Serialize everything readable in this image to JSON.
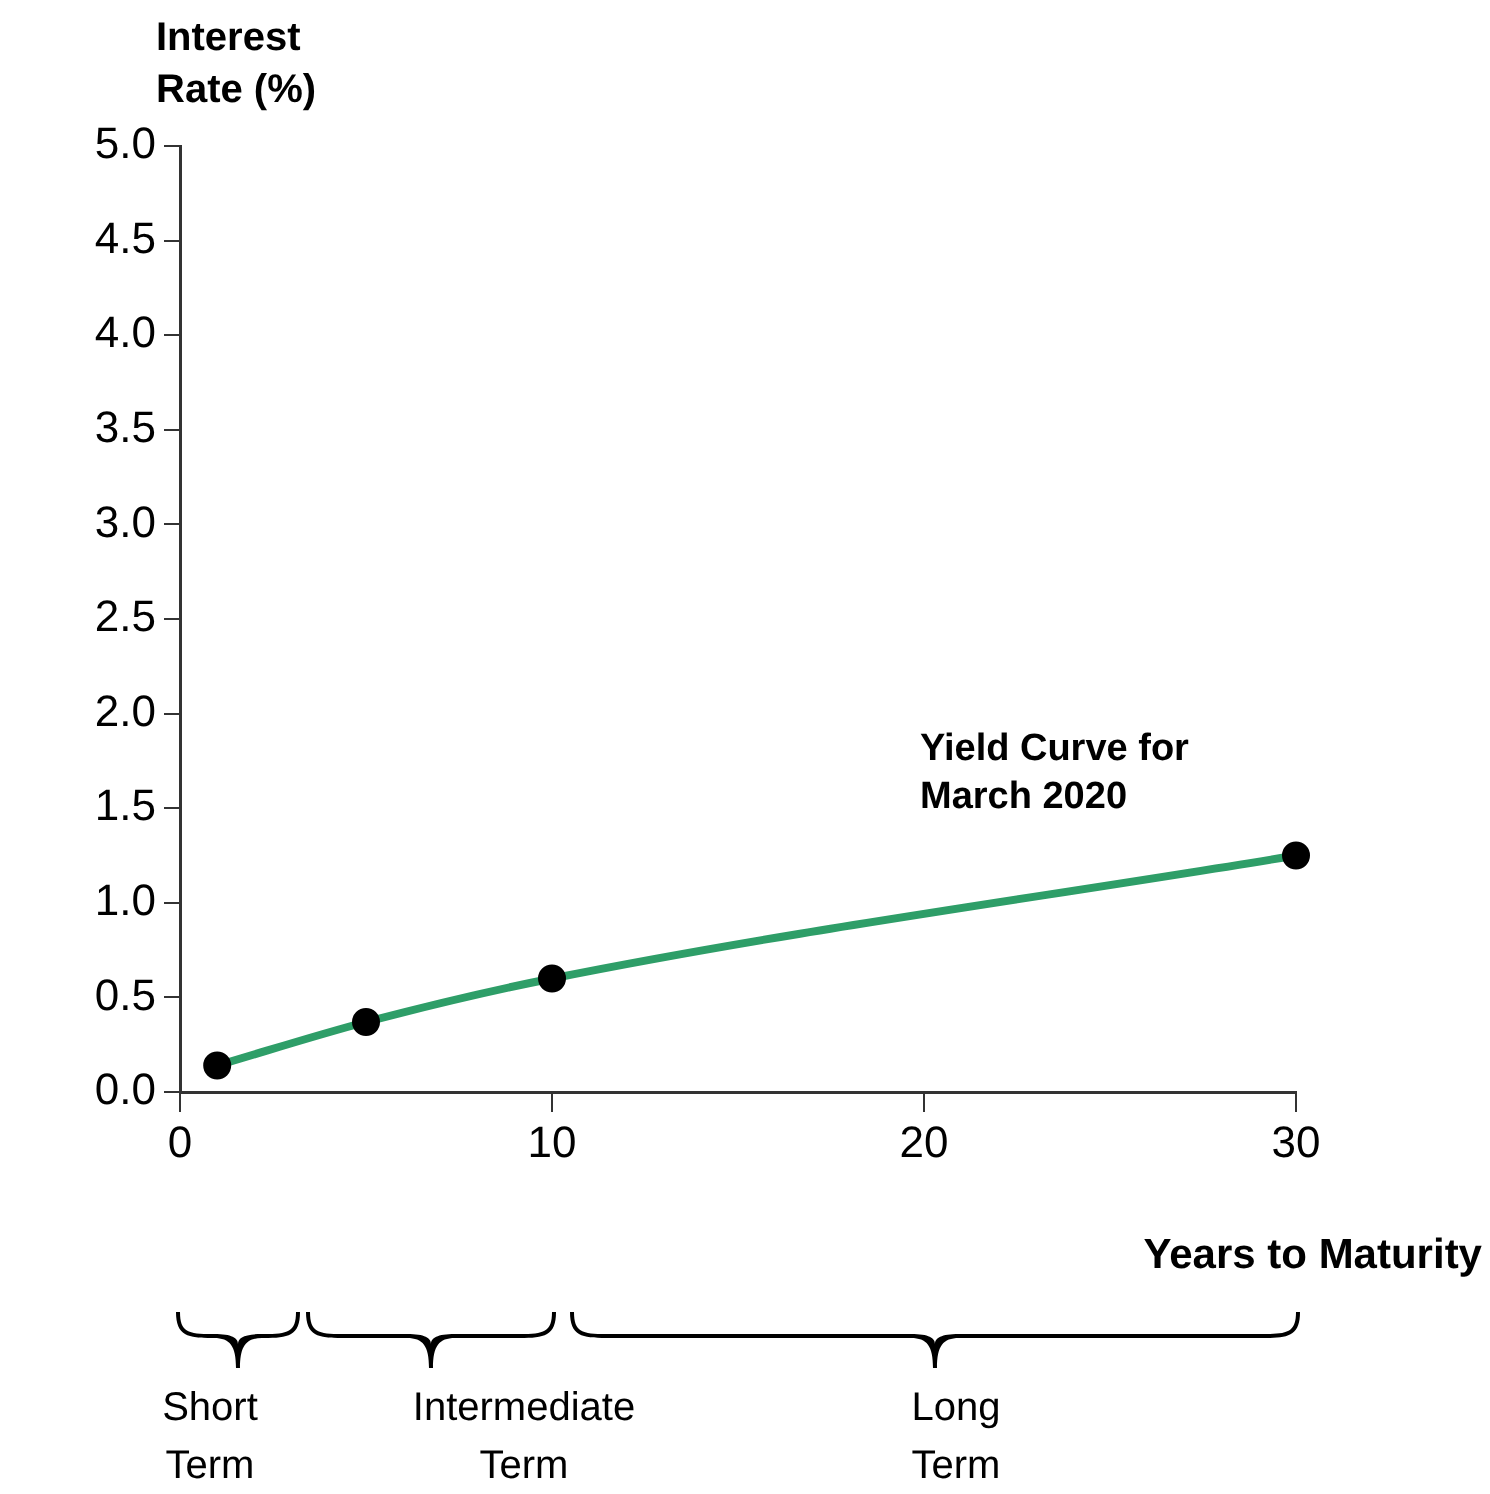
{
  "chart_data": {
    "type": "line",
    "xlabel": "Years to Maturity",
    "ylabel": "Interest Rate (%)",
    "x": [
      1,
      5,
      10,
      30
    ],
    "series": [
      {
        "name": "Yield Curve for March 2020",
        "color": "#2e9e68",
        "values": [
          0.14,
          0.37,
          0.6,
          1.25
        ]
      }
    ],
    "xlim": [
      0,
      30
    ],
    "xticks": [
      0,
      10,
      20,
      30
    ],
    "ylim": [
      0,
      5
    ],
    "yticks": [
      {
        "value": 0,
        "label": "0.0"
      },
      {
        "value": 0.5,
        "label": "0.5"
      },
      {
        "value": 1,
        "label": "1.0"
      },
      {
        "value": 1.5,
        "label": "1.5"
      },
      {
        "value": 2,
        "label": "2.0"
      },
      {
        "value": 2.5,
        "label": "2.5"
      },
      {
        "value": 3,
        "label": "3.0"
      },
      {
        "value": 3.5,
        "label": "3.5"
      },
      {
        "value": 4,
        "label": "4.0"
      },
      {
        "value": 4.5,
        "label": "4.5"
      },
      {
        "value": 5,
        "label": "5.0"
      }
    ],
    "grid": false,
    "marker": "circle",
    "line_style": "solid",
    "legend": false,
    "annotations": [
      "Short Term",
      "Intermediate Term",
      "Long Term"
    ]
  }
}
